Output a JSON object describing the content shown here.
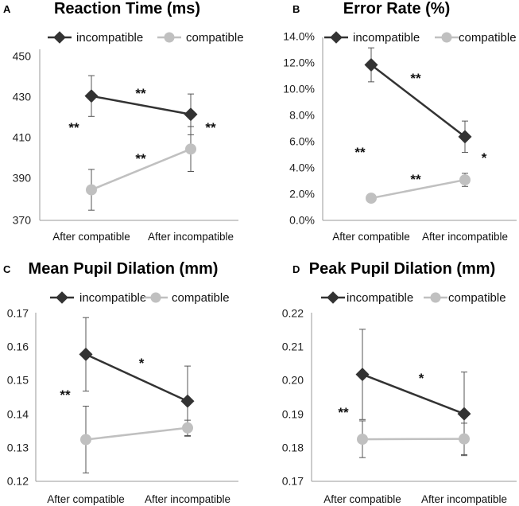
{
  "colors": {
    "incompatible": "#333333",
    "compatible": "#c0c0c0"
  },
  "chart_data": [
    {
      "panel": "A",
      "type": "line",
      "title": "Reaction Time (ms)",
      "categories": [
        "After compatible",
        "After incompatible"
      ],
      "y_ticks": [
        "370",
        "390",
        "410",
        "430",
        "450"
      ],
      "ylim": [
        370,
        450
      ],
      "series": [
        {
          "name": "incompatible",
          "values": [
            431,
            422
          ],
          "error": [
            10,
            10
          ]
        },
        {
          "name": "compatible",
          "values": [
            385,
            405
          ],
          "error": [
            10,
            11
          ]
        }
      ],
      "annotations": [
        "**",
        "**",
        "**",
        "**"
      ]
    },
    {
      "panel": "B",
      "type": "line",
      "title": "Error Rate (%)",
      "categories": [
        "After compatible",
        "After incompatible"
      ],
      "y_ticks": [
        "0.0%",
        "2.0%",
        "4.0%",
        "6.0%",
        "8.0%",
        "10.0%",
        "12.0%",
        "14.0%"
      ],
      "ylim": [
        0,
        14
      ],
      "series": [
        {
          "name": "incompatible",
          "values": [
            11.9,
            6.4
          ],
          "error": [
            1.3,
            1.2
          ]
        },
        {
          "name": "compatible",
          "values": [
            1.7,
            3.1
          ],
          "error": [
            0.3,
            0.5
          ]
        }
      ],
      "annotations": [
        "**",
        "**",
        "**",
        "*"
      ]
    },
    {
      "panel": "C",
      "type": "line",
      "title": "Mean Pupil Dilation (mm)",
      "categories": [
        "After compatible",
        "After incompatible"
      ],
      "y_ticks": [
        "0.12",
        "0.13",
        "0.14",
        "0.15",
        "0.16",
        "0.17"
      ],
      "ylim": [
        0.12,
        0.17
      ],
      "series": [
        {
          "name": "incompatible",
          "values": [
            0.158,
            0.144
          ],
          "error": [
            0.011,
            0.0105
          ]
        },
        {
          "name": "compatible",
          "values": [
            0.1325,
            0.136
          ],
          "error": [
            0.01,
            0.0023
          ]
        }
      ],
      "annotations": [
        "**",
        "*"
      ]
    },
    {
      "panel": "D",
      "type": "line",
      "title": "Peak Pupil Dilation (mm)",
      "categories": [
        "After compatible",
        "After incompatible"
      ],
      "y_ticks": [
        "0.17",
        "0.18",
        "0.19",
        "0.20",
        "0.21",
        "0.22"
      ],
      "ylim": [
        0.17,
        0.22
      ],
      "series": [
        {
          "name": "incompatible",
          "values": [
            0.202,
            0.1902
          ],
          "error": [
            0.0135,
            0.0125
          ]
        },
        {
          "name": "compatible",
          "values": [
            0.1826,
            0.1827
          ],
          "error": [
            0.0055,
            0.0047
          ]
        }
      ],
      "annotations": [
        "**",
        "*"
      ]
    }
  ]
}
